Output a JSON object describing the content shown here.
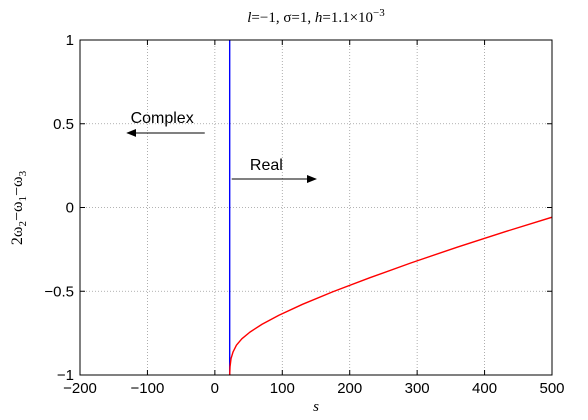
{
  "chart_data": {
    "type": "line",
    "title": {
      "parts": [
        {
          "text": "l",
          "style": "italic"
        },
        {
          "text": "=−1, σ=1, ",
          "style": "normal"
        },
        {
          "text": "h",
          "style": "italic"
        },
        {
          "text": "=1.1×10",
          "style": "normal"
        },
        {
          "text": "−3",
          "style": "sup"
        }
      ]
    },
    "xlabel": "s",
    "ylabel": {
      "parts": [
        {
          "text": "2ω",
          "style": "normal"
        },
        {
          "text": "2",
          "style": "sub"
        },
        {
          "text": "−ω",
          "style": "normal"
        },
        {
          "text": "1",
          "style": "sub"
        },
        {
          "text": "−ω",
          "style": "normal"
        },
        {
          "text": "3",
          "style": "sub"
        }
      ]
    },
    "xlim": [
      -200,
      500
    ],
    "ylim": [
      -1,
      1
    ],
    "xticks": [
      -200,
      -100,
      0,
      100,
      200,
      300,
      400,
      500
    ],
    "xtick_labels": [
      "−200",
      "−100",
      "0",
      "100",
      "200",
      "300",
      "400",
      "500"
    ],
    "yticks": [
      -1,
      -0.5,
      0,
      0.5,
      1
    ],
    "ytick_labels": [
      "−1",
      "−0.5",
      "0",
      "0.5",
      "1"
    ],
    "grid": true,
    "series": [
      {
        "color": "#0000ff",
        "x": [
          22,
          22
        ],
        "y": [
          -1,
          1
        ]
      },
      {
        "color": "#ff0000",
        "x": [
          22,
          22.5,
          24,
          27,
          32,
          40,
          52,
          70,
          95,
          130,
          175,
          230,
          290,
          360,
          430,
          500
        ],
        "y": [
          -1,
          -0.951,
          -0.902,
          -0.862,
          -0.822,
          -0.784,
          -0.744,
          -0.697,
          -0.643,
          -0.578,
          -0.503,
          -0.419,
          -0.332,
          -0.236,
          -0.145,
          -0.058
        ]
      }
    ],
    "annotations": [
      {
        "label": "Complex",
        "arrow_from": [
          -15,
          0.445
        ],
        "arrow_to": [
          -130,
          0.445
        ],
        "text_at": [
          -125,
          0.505
        ]
      },
      {
        "label": "Real",
        "arrow_from": [
          25,
          0.17
        ],
        "arrow_to": [
          150,
          0.17
        ],
        "text_at": [
          52,
          0.225
        ]
      }
    ]
  }
}
